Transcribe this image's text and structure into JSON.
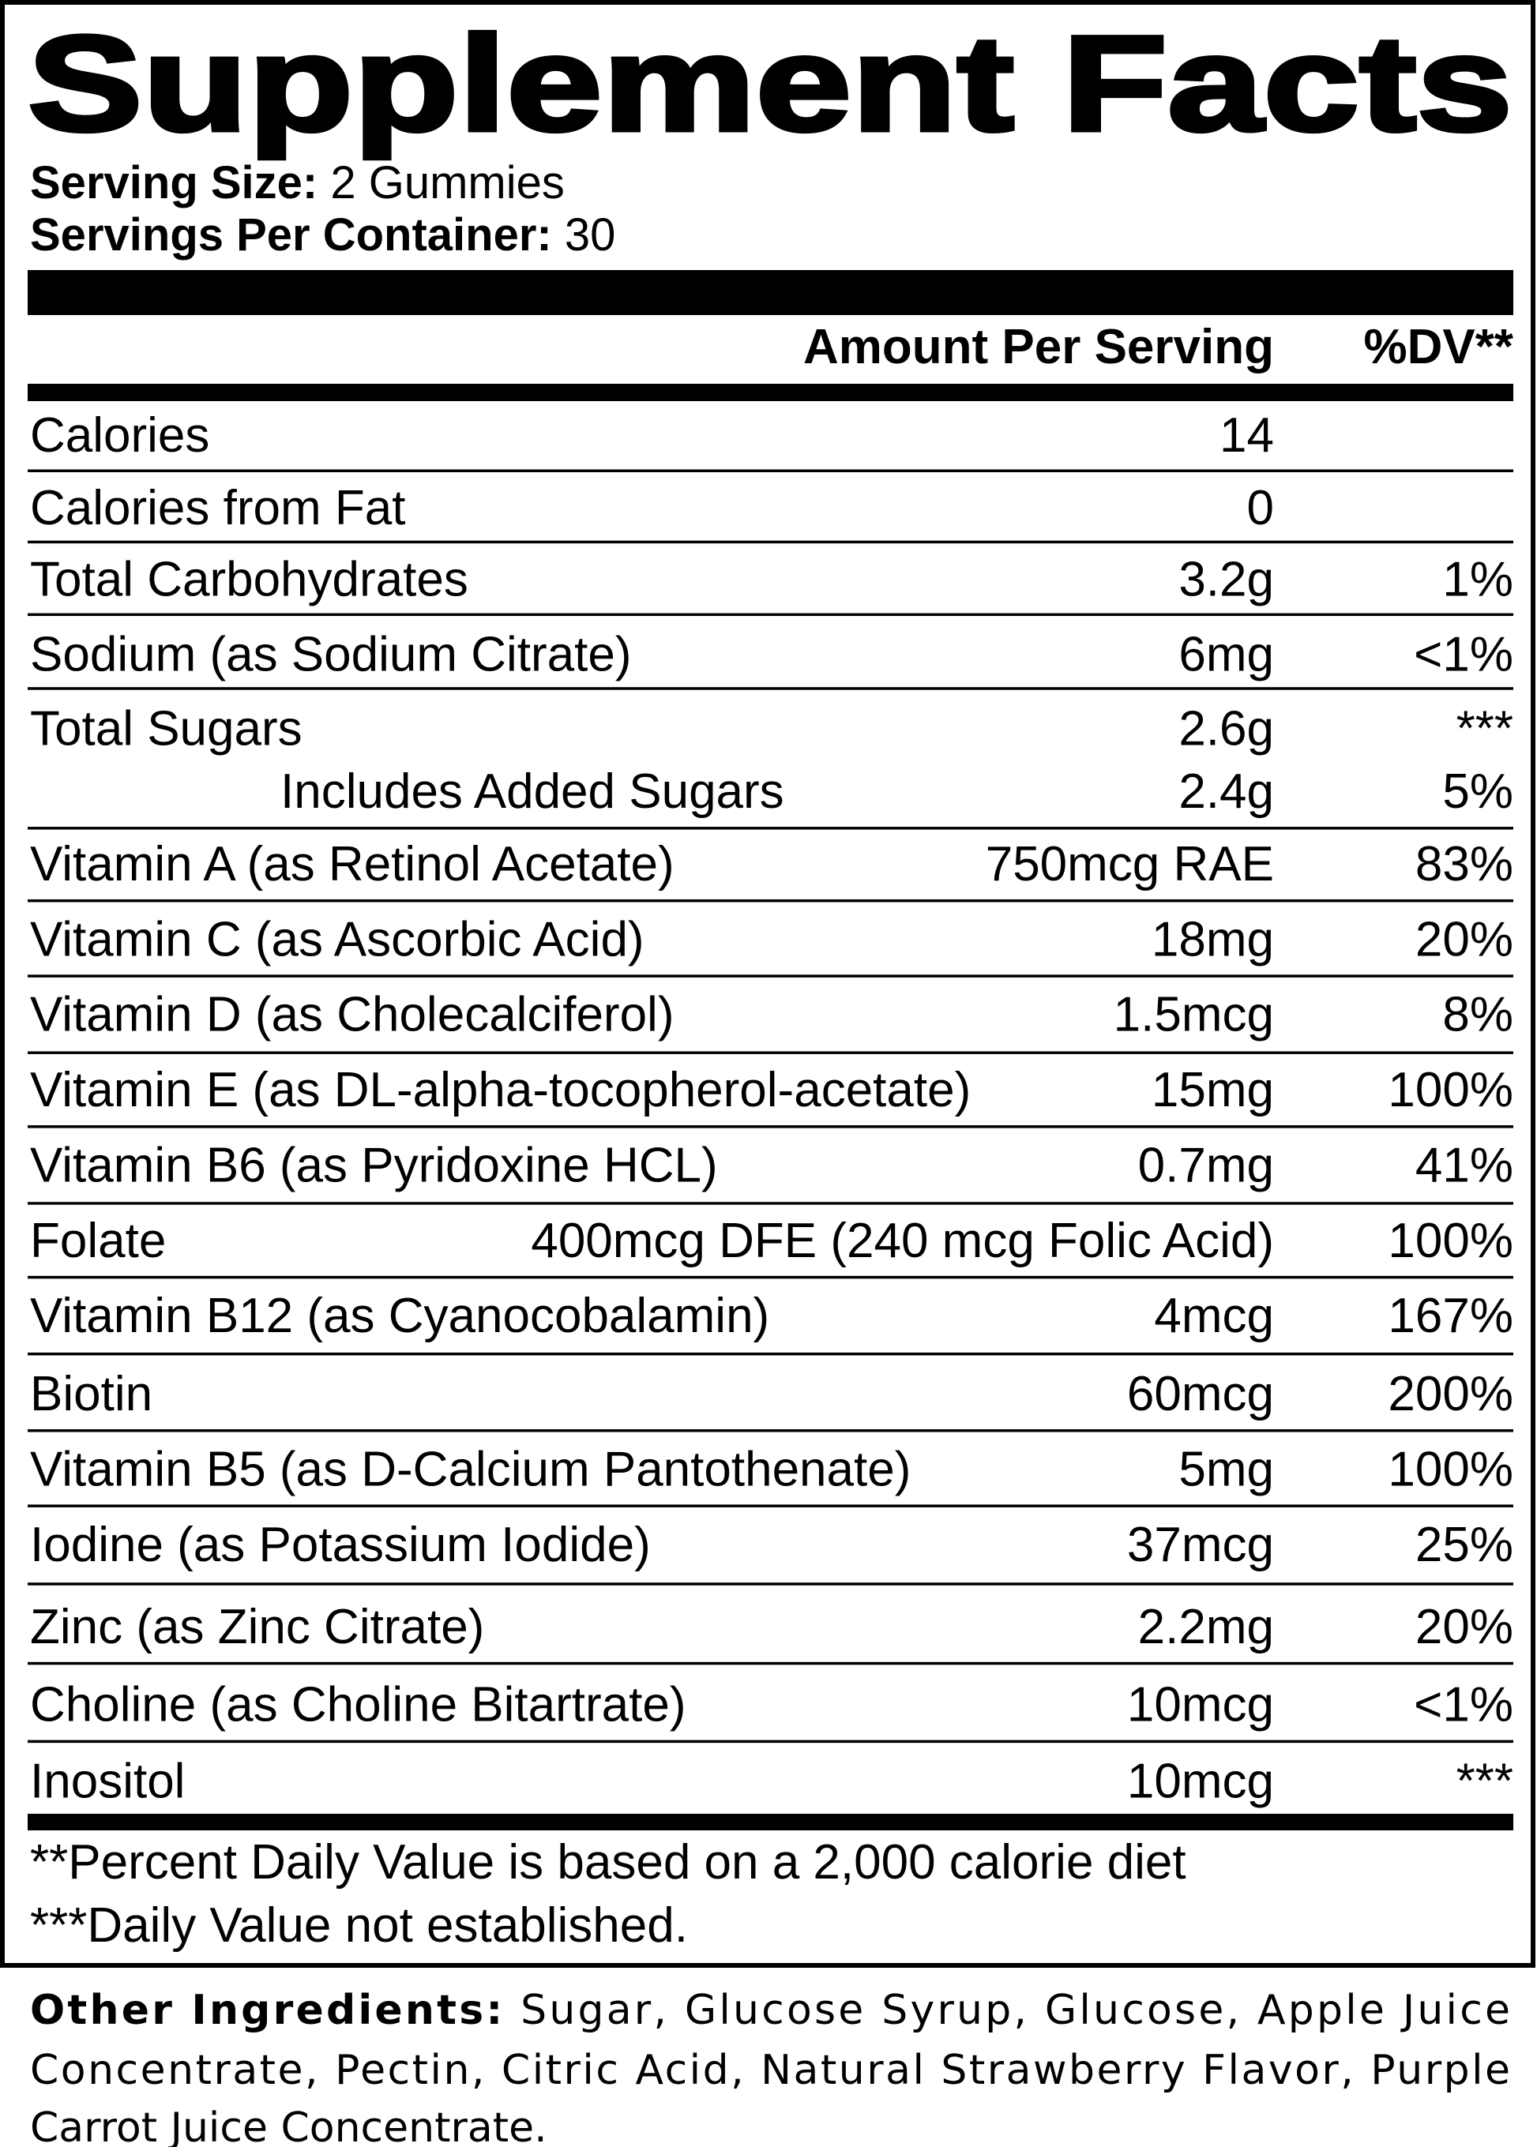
{
  "header": {
    "title": "Supplement Facts",
    "serving_size_label": "Serving Size:",
    "serving_size": "2 Gummies",
    "servings_label": "Servings Per Container:",
    "servings": "30"
  },
  "table": {
    "columns": [
      "Amount Per Serving",
      "%DV**"
    ],
    "rows": [
      {
        "name": "Calories",
        "amount": "14"
      },
      {
        "name": "Calories from Fat",
        "amount": "0"
      },
      {
        "name": "Total Carbohydrates",
        "amount": "3.2g",
        "dv": "1%"
      },
      {
        "name": "Sodium (as Sodium Citrate)",
        "amount": "6mg",
        "dv": "<1%"
      },
      {
        "name": "Total Sugars",
        "amount": "2.6g",
        "dv": "***"
      },
      {
        "name": "Includes Added Sugars",
        "amount": "2.4g",
        "dv": "5%",
        "sub": true
      },
      {
        "name": "Vitamin A (as Retinol Acetate)",
        "amount": "750mcg RAE",
        "dv": "83%"
      },
      {
        "name": "Vitamin C (as Ascorbic Acid)",
        "amount": "18mg",
        "dv": "20%"
      },
      {
        "name": "Vitamin D (as Cholecalciferol)",
        "amount": "1.5mcg",
        "dv": "8%"
      },
      {
        "name": "Vitamin E (as DL-alpha-tocopherol-acetate)",
        "amount": "15mg",
        "dv": "100%"
      },
      {
        "name": "Vitamin B6 (as Pyridoxine HCL)",
        "amount": "0.7mg",
        "dv": "41%"
      },
      {
        "name": "Folate",
        "amount": "400mcg DFE (240 mcg Folic Acid)",
        "dv": "100%"
      },
      {
        "name": "Vitamin B12 (as Cyanocobalamin)",
        "amount": "4mcg",
        "dv": "167%"
      },
      {
        "name": "Biotin",
        "amount": "60mcg",
        "dv": "200%"
      },
      {
        "name": "Vitamin B5 (as D-Calcium Pantothenate)",
        "amount": "5mg",
        "dv": "100%"
      },
      {
        "name": "Iodine (as Potassium Iodide)",
        "amount": "37mcg",
        "dv": "25%"
      },
      {
        "name": "Zinc (as Zinc Citrate)",
        "amount": "2.2mg",
        "dv": "20%"
      },
      {
        "name": "Choline (as Choline Bitartrate)",
        "amount": "10mcg",
        "dv": "<1%"
      },
      {
        "name": "Inositol",
        "amount": "10mcg",
        "dv": "***"
      }
    ]
  },
  "footnotes": [
    "**Percent Daily Value is based on a 2,000 calorie diet",
    "***Daily Value not established."
  ],
  "other_ingredients": {
    "label": "Other Ingredients:",
    "lines": [
      "Sugar, Glucose Syrup, Glucose, Apple Juice",
      "Concentrate, Pectin, Citric Acid, Natural Strawberry Flavor, Purple",
      "Carrot Juice Concentrate."
    ]
  }
}
